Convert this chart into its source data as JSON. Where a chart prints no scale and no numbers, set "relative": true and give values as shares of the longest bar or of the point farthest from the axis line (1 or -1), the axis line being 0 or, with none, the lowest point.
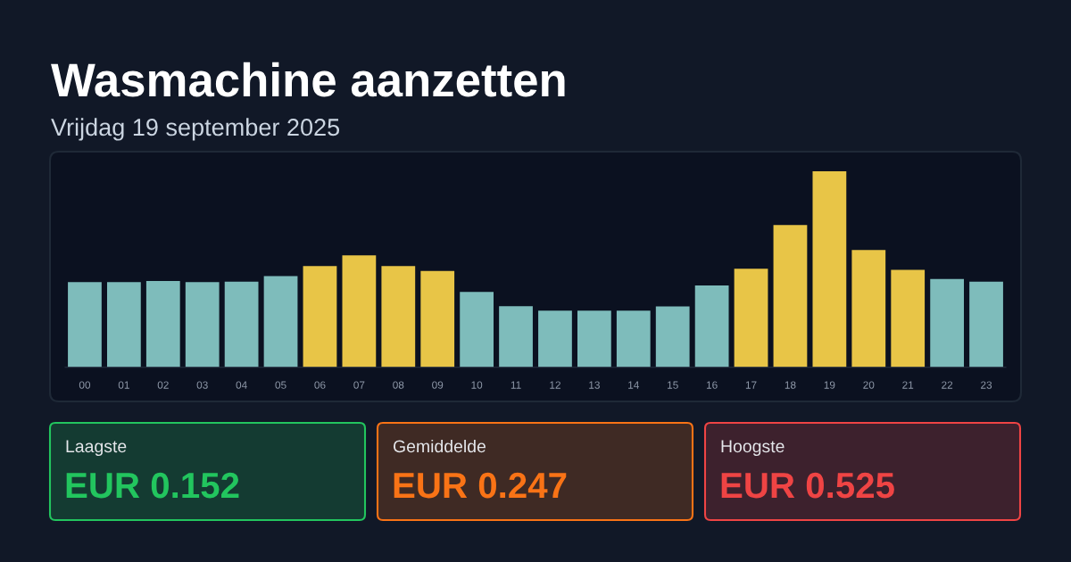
{
  "chart_data": [
    {
      "type": "bar",
      "title": "Wasmachine aanzetten",
      "subtitle": "Vrijdag 19 september 2025",
      "categories": [
        "00",
        "01",
        "02",
        "03",
        "04",
        "05",
        "06",
        "07",
        "08",
        "09",
        "10",
        "11",
        "12",
        "13",
        "14",
        "15",
        "16",
        "17",
        "18",
        "19",
        "20",
        "21",
        "22",
        "23"
      ],
      "values": [
        0.435,
        0.435,
        0.44,
        0.435,
        0.437,
        0.465,
        0.516,
        0.571,
        0.516,
        0.491,
        0.385,
        0.312,
        0.289,
        0.289,
        0.289,
        0.311,
        0.418,
        0.503,
        0.726,
        1,
        0.598,
        0.497,
        0.45,
        0.437
      ],
      "colors": [
        "#7ebcbb",
        "#7ebcbb",
        "#7ebcbb",
        "#7ebcbb",
        "#7ebcbb",
        "#7ebcbb",
        "#e8c547",
        "#e8c547",
        "#e8c547",
        "#e8c547",
        "#7ebcbb",
        "#7ebcbb",
        "#7ebcbb",
        "#7ebcbb",
        "#7ebcbb",
        "#7ebcbb",
        "#7ebcbb",
        "#e8c547",
        "#e8c547",
        "#e8c547",
        "#e8c547",
        "#e8c547",
        "#7ebcbb",
        "#7ebcbb"
      ],
      "relative": true,
      "tick_labels": "x"
    },
    {
      "type": "other",
      "title": "Laagste",
      "annotations": [
        "EUR 0.152"
      ],
      "color": "#22c55e"
    },
    {
      "type": "other",
      "title": "Gemiddelde",
      "annotations": [
        "EUR 0.247"
      ],
      "color": "#f97316"
    },
    {
      "type": "other",
      "title": "Hoogste",
      "annotations": [
        "EUR 0.525"
      ],
      "color": "#ef4444"
    }
  ]
}
